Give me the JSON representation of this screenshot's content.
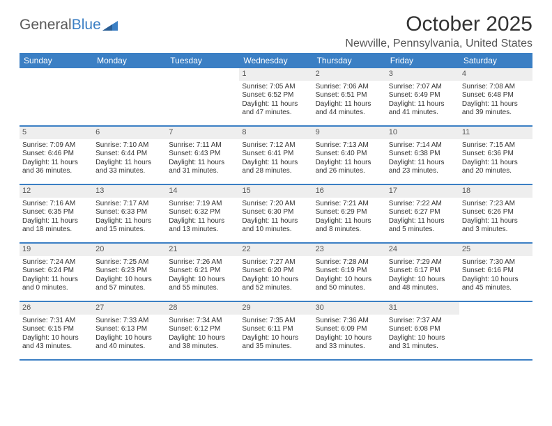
{
  "logo": {
    "text1": "General",
    "text2": "Blue"
  },
  "header": {
    "title": "October 2025",
    "location": "Newville, Pennsylvania, United States"
  },
  "colors": {
    "brand": "#3b7fc4",
    "header_bg": "#3b7fc4",
    "daynum_bg": "#eeeeee",
    "text": "#333333",
    "muted": "#555555"
  },
  "day_headers": [
    "Sunday",
    "Monday",
    "Tuesday",
    "Wednesday",
    "Thursday",
    "Friday",
    "Saturday"
  ],
  "weeks": [
    [
      {
        "empty": true
      },
      {
        "empty": true
      },
      {
        "empty": true
      },
      {
        "day": "1",
        "sunrise": "Sunrise: 7:05 AM",
        "sunset": "Sunset: 6:52 PM",
        "daylight1": "Daylight: 11 hours",
        "daylight2": "and 47 minutes."
      },
      {
        "day": "2",
        "sunrise": "Sunrise: 7:06 AM",
        "sunset": "Sunset: 6:51 PM",
        "daylight1": "Daylight: 11 hours",
        "daylight2": "and 44 minutes."
      },
      {
        "day": "3",
        "sunrise": "Sunrise: 7:07 AM",
        "sunset": "Sunset: 6:49 PM",
        "daylight1": "Daylight: 11 hours",
        "daylight2": "and 41 minutes."
      },
      {
        "day": "4",
        "sunrise": "Sunrise: 7:08 AM",
        "sunset": "Sunset: 6:48 PM",
        "daylight1": "Daylight: 11 hours",
        "daylight2": "and 39 minutes."
      }
    ],
    [
      {
        "day": "5",
        "sunrise": "Sunrise: 7:09 AM",
        "sunset": "Sunset: 6:46 PM",
        "daylight1": "Daylight: 11 hours",
        "daylight2": "and 36 minutes."
      },
      {
        "day": "6",
        "sunrise": "Sunrise: 7:10 AM",
        "sunset": "Sunset: 6:44 PM",
        "daylight1": "Daylight: 11 hours",
        "daylight2": "and 33 minutes."
      },
      {
        "day": "7",
        "sunrise": "Sunrise: 7:11 AM",
        "sunset": "Sunset: 6:43 PM",
        "daylight1": "Daylight: 11 hours",
        "daylight2": "and 31 minutes."
      },
      {
        "day": "8",
        "sunrise": "Sunrise: 7:12 AM",
        "sunset": "Sunset: 6:41 PM",
        "daylight1": "Daylight: 11 hours",
        "daylight2": "and 28 minutes."
      },
      {
        "day": "9",
        "sunrise": "Sunrise: 7:13 AM",
        "sunset": "Sunset: 6:40 PM",
        "daylight1": "Daylight: 11 hours",
        "daylight2": "and 26 minutes."
      },
      {
        "day": "10",
        "sunrise": "Sunrise: 7:14 AM",
        "sunset": "Sunset: 6:38 PM",
        "daylight1": "Daylight: 11 hours",
        "daylight2": "and 23 minutes."
      },
      {
        "day": "11",
        "sunrise": "Sunrise: 7:15 AM",
        "sunset": "Sunset: 6:36 PM",
        "daylight1": "Daylight: 11 hours",
        "daylight2": "and 20 minutes."
      }
    ],
    [
      {
        "day": "12",
        "sunrise": "Sunrise: 7:16 AM",
        "sunset": "Sunset: 6:35 PM",
        "daylight1": "Daylight: 11 hours",
        "daylight2": "and 18 minutes."
      },
      {
        "day": "13",
        "sunrise": "Sunrise: 7:17 AM",
        "sunset": "Sunset: 6:33 PM",
        "daylight1": "Daylight: 11 hours",
        "daylight2": "and 15 minutes."
      },
      {
        "day": "14",
        "sunrise": "Sunrise: 7:19 AM",
        "sunset": "Sunset: 6:32 PM",
        "daylight1": "Daylight: 11 hours",
        "daylight2": "and 13 minutes."
      },
      {
        "day": "15",
        "sunrise": "Sunrise: 7:20 AM",
        "sunset": "Sunset: 6:30 PM",
        "daylight1": "Daylight: 11 hours",
        "daylight2": "and 10 minutes."
      },
      {
        "day": "16",
        "sunrise": "Sunrise: 7:21 AM",
        "sunset": "Sunset: 6:29 PM",
        "daylight1": "Daylight: 11 hours",
        "daylight2": "and 8 minutes."
      },
      {
        "day": "17",
        "sunrise": "Sunrise: 7:22 AM",
        "sunset": "Sunset: 6:27 PM",
        "daylight1": "Daylight: 11 hours",
        "daylight2": "and 5 minutes."
      },
      {
        "day": "18",
        "sunrise": "Sunrise: 7:23 AM",
        "sunset": "Sunset: 6:26 PM",
        "daylight1": "Daylight: 11 hours",
        "daylight2": "and 3 minutes."
      }
    ],
    [
      {
        "day": "19",
        "sunrise": "Sunrise: 7:24 AM",
        "sunset": "Sunset: 6:24 PM",
        "daylight1": "Daylight: 11 hours",
        "daylight2": "and 0 minutes."
      },
      {
        "day": "20",
        "sunrise": "Sunrise: 7:25 AM",
        "sunset": "Sunset: 6:23 PM",
        "daylight1": "Daylight: 10 hours",
        "daylight2": "and 57 minutes."
      },
      {
        "day": "21",
        "sunrise": "Sunrise: 7:26 AM",
        "sunset": "Sunset: 6:21 PM",
        "daylight1": "Daylight: 10 hours",
        "daylight2": "and 55 minutes."
      },
      {
        "day": "22",
        "sunrise": "Sunrise: 7:27 AM",
        "sunset": "Sunset: 6:20 PM",
        "daylight1": "Daylight: 10 hours",
        "daylight2": "and 52 minutes."
      },
      {
        "day": "23",
        "sunrise": "Sunrise: 7:28 AM",
        "sunset": "Sunset: 6:19 PM",
        "daylight1": "Daylight: 10 hours",
        "daylight2": "and 50 minutes."
      },
      {
        "day": "24",
        "sunrise": "Sunrise: 7:29 AM",
        "sunset": "Sunset: 6:17 PM",
        "daylight1": "Daylight: 10 hours",
        "daylight2": "and 48 minutes."
      },
      {
        "day": "25",
        "sunrise": "Sunrise: 7:30 AM",
        "sunset": "Sunset: 6:16 PM",
        "daylight1": "Daylight: 10 hours",
        "daylight2": "and 45 minutes."
      }
    ],
    [
      {
        "day": "26",
        "sunrise": "Sunrise: 7:31 AM",
        "sunset": "Sunset: 6:15 PM",
        "daylight1": "Daylight: 10 hours",
        "daylight2": "and 43 minutes."
      },
      {
        "day": "27",
        "sunrise": "Sunrise: 7:33 AM",
        "sunset": "Sunset: 6:13 PM",
        "daylight1": "Daylight: 10 hours",
        "daylight2": "and 40 minutes."
      },
      {
        "day": "28",
        "sunrise": "Sunrise: 7:34 AM",
        "sunset": "Sunset: 6:12 PM",
        "daylight1": "Daylight: 10 hours",
        "daylight2": "and 38 minutes."
      },
      {
        "day": "29",
        "sunrise": "Sunrise: 7:35 AM",
        "sunset": "Sunset: 6:11 PM",
        "daylight1": "Daylight: 10 hours",
        "daylight2": "and 35 minutes."
      },
      {
        "day": "30",
        "sunrise": "Sunrise: 7:36 AM",
        "sunset": "Sunset: 6:09 PM",
        "daylight1": "Daylight: 10 hours",
        "daylight2": "and 33 minutes."
      },
      {
        "day": "31",
        "sunrise": "Sunrise: 7:37 AM",
        "sunset": "Sunset: 6:08 PM",
        "daylight1": "Daylight: 10 hours",
        "daylight2": "and 31 minutes."
      },
      {
        "empty": true
      }
    ]
  ]
}
